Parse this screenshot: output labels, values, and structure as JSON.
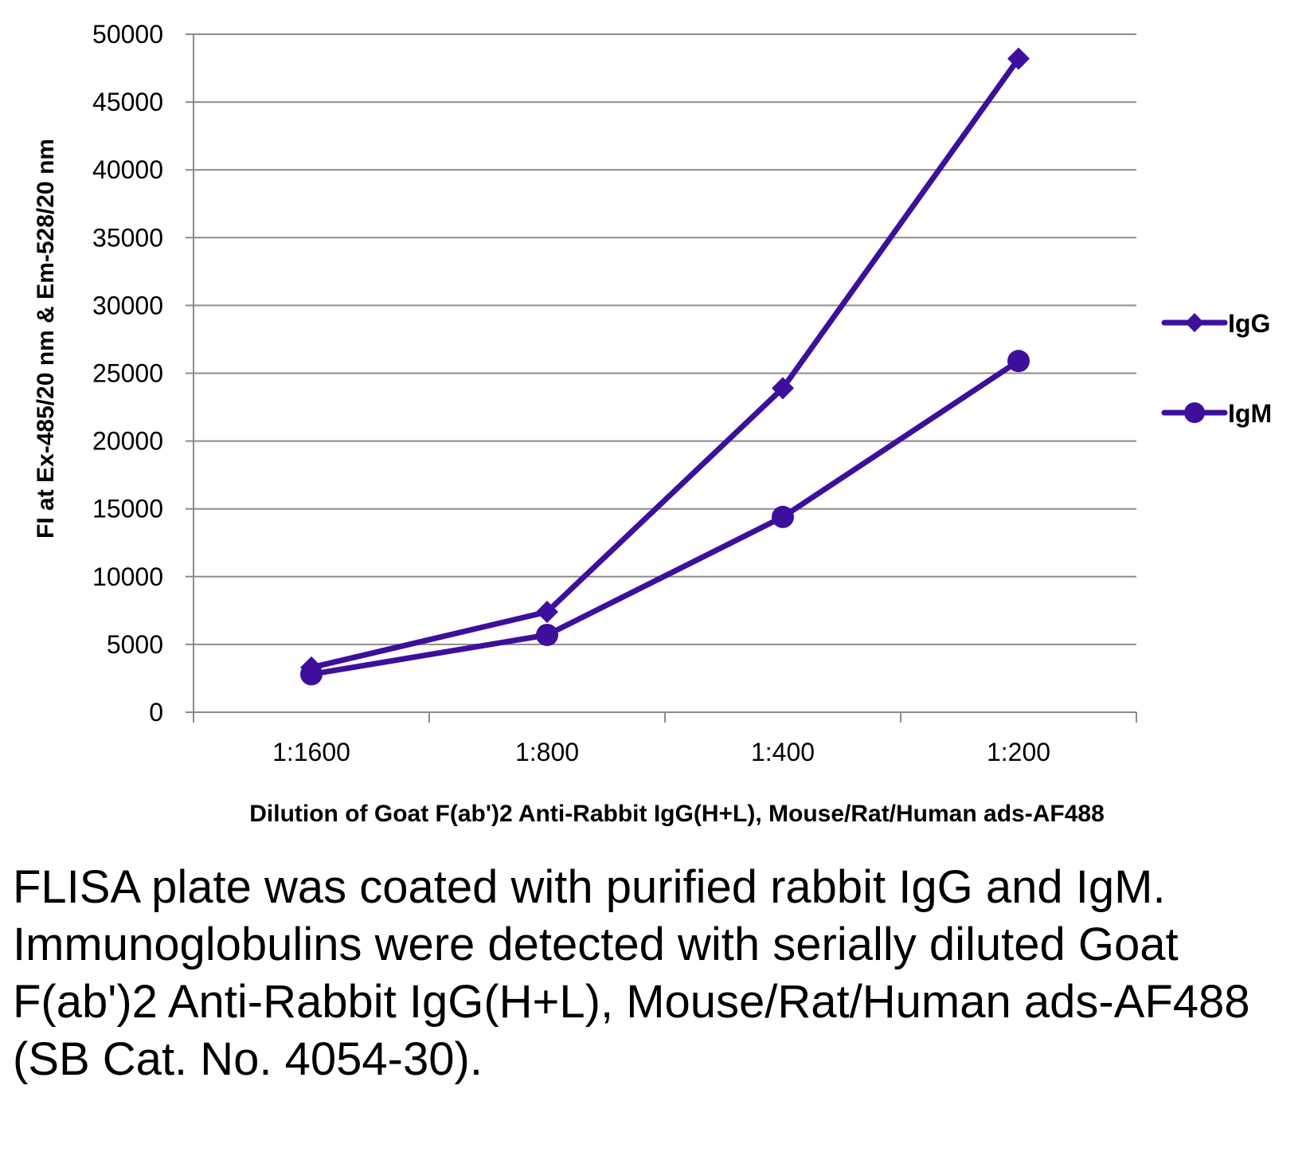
{
  "chart_data": {
    "type": "line",
    "categories": [
      "1:1600",
      "1:800",
      "1:400",
      "1:200"
    ],
    "series": [
      {
        "name": "IgG",
        "marker": "diamond",
        "values": [
          3300,
          7400,
          23900,
          48200
        ]
      },
      {
        "name": "IgM",
        "marker": "circle",
        "values": [
          2800,
          5700,
          14400,
          25900
        ]
      }
    ],
    "title": "",
    "xlabel": "Dilution of Goat F(ab')2 Anti-Rabbit IgG(H+L), Mouse/Rat/Human ads-AF488",
    "ylabel": "FI at Ex-485/20 nm & Em-528/20 nm",
    "ylim": [
      0,
      50000
    ],
    "yticks": [
      "0",
      "5000",
      "10000",
      "15000",
      "20000",
      "25000",
      "30000",
      "35000",
      "40000",
      "45000",
      "50000"
    ],
    "grid": true,
    "legend": "right",
    "series_color": "#3d0f9c",
    "grid_color": "#8c8c8c"
  },
  "caption": "FLISA plate was coated with purified rabbit IgG and IgM.  Immunoglobulins were detected with serially diluted Goat F(ab')2 Anti-Rabbit IgG(H+L), Mouse/Rat/Human ads-AF488 (SB Cat. No. 4054-30)."
}
